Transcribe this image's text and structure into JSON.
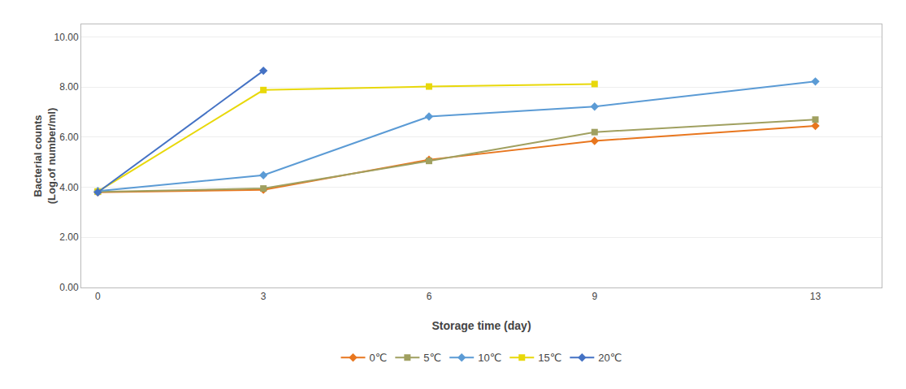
{
  "chart_data": {
    "type": "line",
    "xlabel": "Storage time (day)",
    "ylabel": "Bacterial counts\n(Log.of number/ml)",
    "x": [
      0,
      3,
      6,
      9,
      13
    ],
    "series": [
      {
        "name": "0℃",
        "color": "#E8761E",
        "marker": "diamond",
        "values": [
          3.8,
          3.9,
          5.1,
          5.85,
          6.45
        ]
      },
      {
        "name": "5℃",
        "color": "#A0A060",
        "marker": "square",
        "values": [
          3.82,
          3.95,
          5.05,
          6.2,
          6.7
        ]
      },
      {
        "name": "10℃",
        "color": "#5B9BD5",
        "marker": "diamond",
        "values": [
          3.85,
          4.48,
          6.82,
          7.22,
          8.22
        ]
      },
      {
        "name": "15℃",
        "color": "#E8D80A",
        "marker": "square",
        "values": [
          3.83,
          7.88,
          8.02,
          8.12,
          null
        ]
      },
      {
        "name": "20℃",
        "color": "#4472C4",
        "marker": "diamond",
        "values": [
          3.8,
          8.65,
          null,
          null,
          null
        ]
      }
    ],
    "xlim": [
      -0.3,
      14.2
    ],
    "xticks": [
      0,
      3,
      6,
      9,
      13
    ],
    "ylim": [
      0,
      10.5
    ],
    "yticks": [
      {
        "value": 0.0,
        "label": "0.00"
      },
      {
        "value": 2.0,
        "label": "2.00"
      },
      {
        "value": 4.0,
        "label": "4.00"
      },
      {
        "value": 6.0,
        "label": "6.00"
      },
      {
        "value": 8.0,
        "label": "8.00"
      },
      {
        "value": 10.0,
        "label": "10.00"
      }
    ],
    "grid": "y",
    "legend": "bottom"
  }
}
